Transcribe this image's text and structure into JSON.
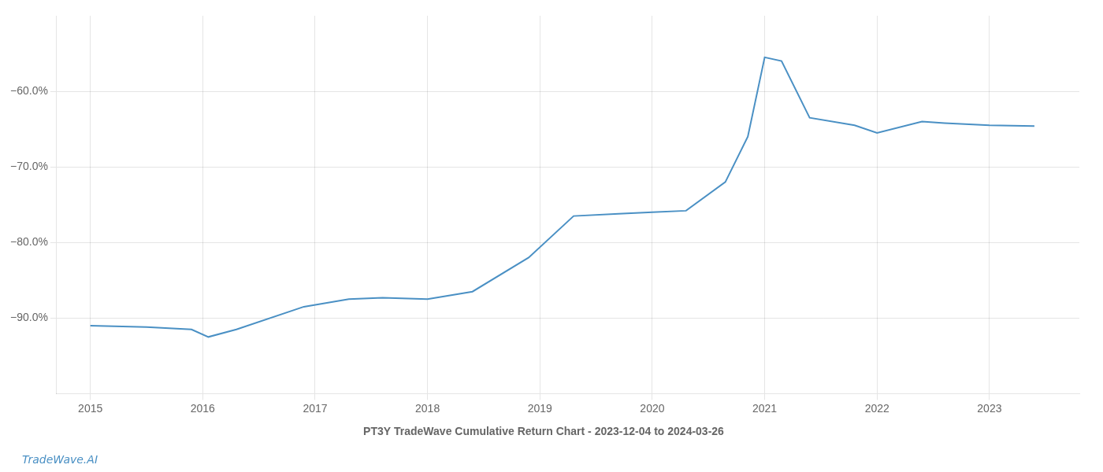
{
  "chart_data": {
    "type": "line",
    "title": "PT3Y TradeWave Cumulative Return Chart - 2023-12-04 to 2024-03-26",
    "annotations": [
      "TradeWave.AI"
    ],
    "color": "#4a90c4",
    "x": [
      2015.0,
      2015.5,
      2015.9,
      2016.05,
      2016.3,
      2016.9,
      2017.3,
      2017.6,
      2018.0,
      2018.4,
      2018.9,
      2019.3,
      2019.7,
      2020.0,
      2020.3,
      2020.65,
      2020.85,
      2021.0,
      2021.15,
      2021.4,
      2021.8,
      2022.0,
      2022.4,
      2022.6,
      2023.0,
      2023.4
    ],
    "values": [
      -91.0,
      -91.2,
      -91.5,
      -92.5,
      -91.5,
      -88.5,
      -87.5,
      -87.3,
      -87.5,
      -86.5,
      -82.0,
      -76.5,
      -76.2,
      -76.0,
      -75.8,
      -72.0,
      -66.0,
      -55.5,
      -56.0,
      -63.5,
      -64.5,
      -65.5,
      -64.0,
      -64.2,
      -64.5,
      -64.6
    ],
    "xlim": [
      2014.7,
      2023.8
    ],
    "xticks": [
      2015,
      2016,
      2017,
      2018,
      2019,
      2020,
      2021,
      2022,
      2023
    ],
    "ylim": [
      -100,
      -50
    ],
    "yticks": [
      {
        "value": -60.0,
        "label": "−60.0%"
      },
      {
        "value": -70.0,
        "label": "−70.0%"
      },
      {
        "value": -80.0,
        "label": "−80.0%"
      },
      {
        "value": -90.0,
        "label": "−90.0%"
      }
    ],
    "grid": true
  }
}
